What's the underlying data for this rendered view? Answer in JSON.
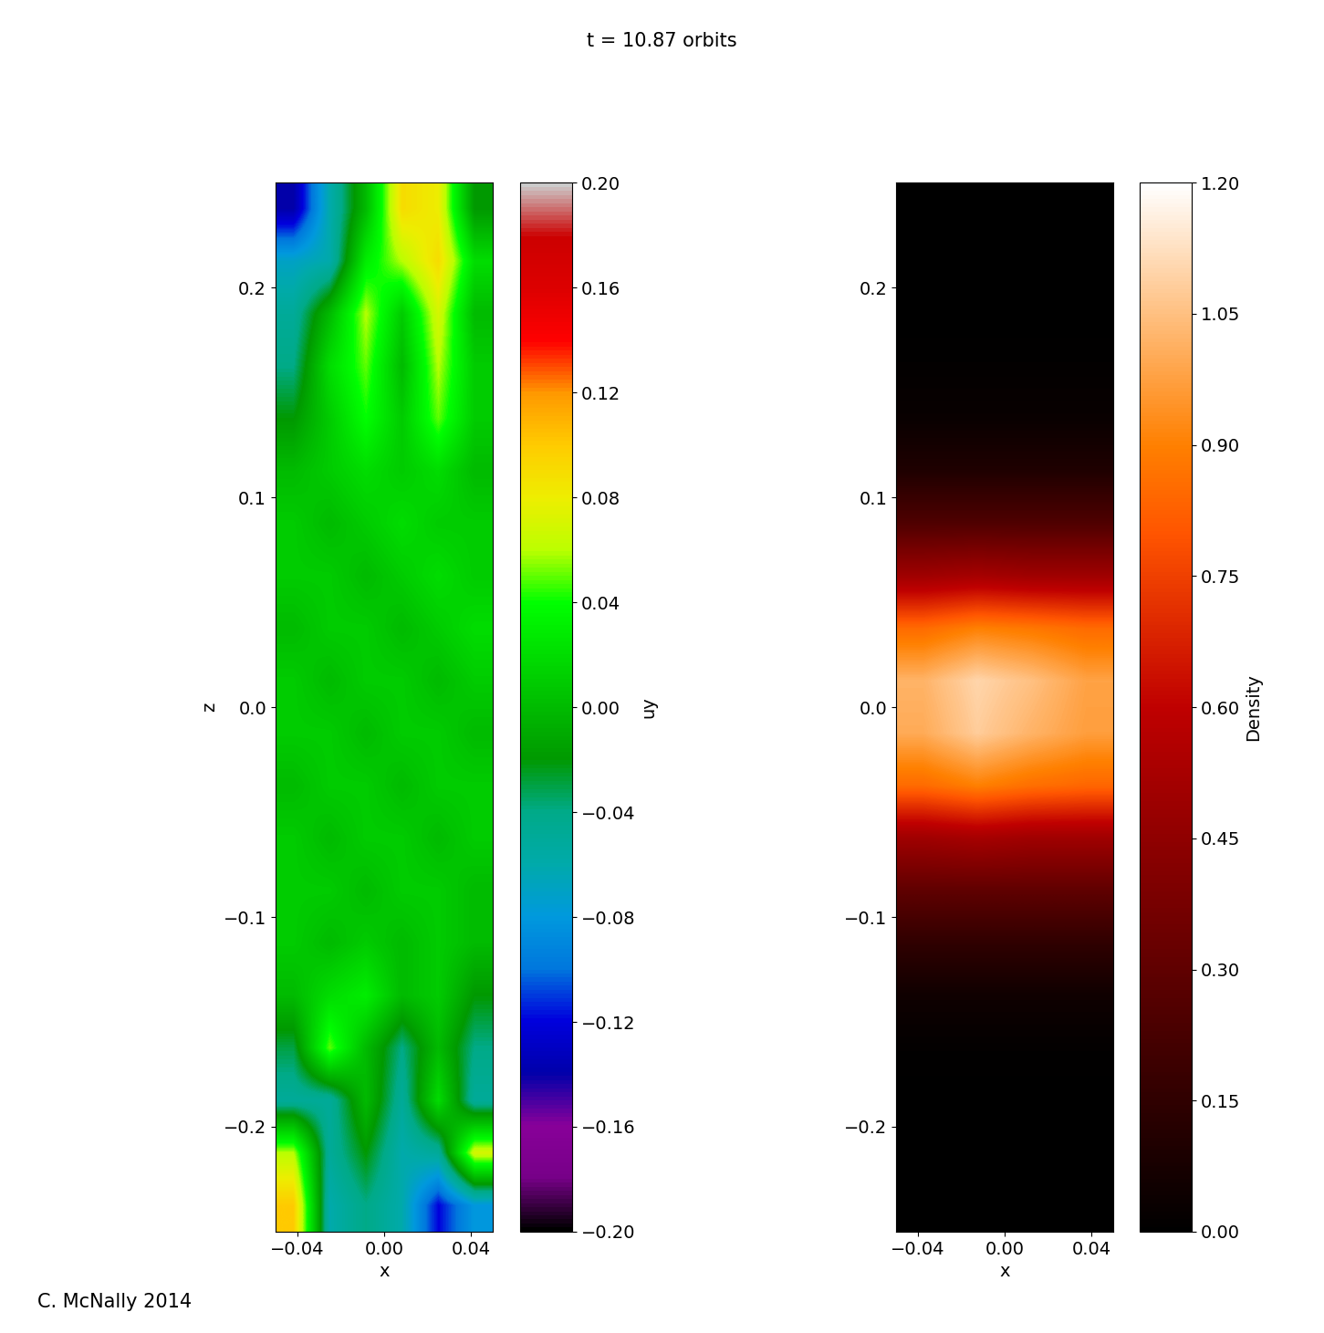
{
  "title": "t = 10.87 orbits",
  "credit": "C. McNally 2014",
  "chart_data": [
    {
      "type": "heatmap",
      "x_label": "x",
      "y_label": "z",
      "xlim": [
        -0.05,
        0.05
      ],
      "ylim": [
        -0.25,
        0.25
      ],
      "xticks": [
        {
          "value": -0.04,
          "label": "−0.04"
        },
        {
          "value": 0.0,
          "label": "0.00"
        },
        0.04
      ],
      "yticks": [
        {
          "value": -0.2,
          "label": "−0.2"
        },
        {
          "value": -0.1,
          "label": "−0.1"
        },
        0.0,
        0.1,
        0.2
      ],
      "color": "nipy_spectral",
      "cells": [
        [
          -0.14,
          -0.06,
          0.0,
          0.09,
          0.08,
          -0.02
        ],
        [
          -0.07,
          -0.06,
          0.03,
          0.06,
          0.09,
          0.02
        ],
        [
          -0.05,
          0.0,
          0.06,
          0.01,
          0.07,
          0.0
        ],
        [
          -0.04,
          0.02,
          0.05,
          0.0,
          0.06,
          0.01
        ],
        [
          -0.02,
          0.01,
          0.04,
          0.01,
          0.05,
          0.01
        ],
        [
          0.0,
          0.01,
          0.02,
          0.01,
          0.02,
          0.0
        ],
        [
          0.01,
          0.0,
          0.01,
          0.02,
          0.01,
          0.01
        ],
        [
          0.01,
          0.01,
          0.0,
          0.01,
          0.02,
          0.01
        ],
        [
          0.0,
          0.01,
          0.01,
          0.0,
          0.01,
          0.02
        ],
        [
          0.01,
          0.0,
          0.01,
          0.01,
          0.0,
          0.01
        ],
        [
          0.01,
          0.01,
          0.0,
          0.01,
          0.01,
          0.0
        ],
        [
          0.0,
          0.01,
          0.01,
          0.0,
          0.01,
          0.01
        ],
        [
          0.01,
          0.0,
          0.01,
          0.01,
          0.0,
          0.01
        ],
        [
          0.01,
          0.01,
          0.0,
          0.01,
          0.01,
          0.0
        ],
        [
          0.01,
          0.0,
          0.01,
          0.0,
          0.01,
          0.0
        ],
        [
          0.0,
          0.02,
          0.03,
          0.0,
          0.01,
          -0.02
        ],
        [
          -0.03,
          0.05,
          0.0,
          -0.04,
          0.0,
          -0.04
        ],
        [
          -0.05,
          -0.05,
          0.0,
          -0.05,
          0.02,
          -0.05
        ],
        [
          0.06,
          -0.05,
          -0.02,
          -0.06,
          -0.05,
          0.07
        ],
        [
          0.1,
          -0.06,
          -0.04,
          -0.06,
          -0.12,
          -0.08
        ]
      ],
      "colorbar": {
        "label": "uy",
        "range": [
          -0.2,
          0.2
        ],
        "ticks": [
          {
            "value": -0.2,
            "label": "−0.20"
          },
          {
            "value": -0.16,
            "label": "−0.16"
          },
          {
            "value": -0.12,
            "label": "−0.12"
          },
          {
            "value": -0.08,
            "label": "−0.08"
          },
          {
            "value": -0.04,
            "label": "−0.04"
          },
          {
            "value": 0.0,
            "label": "0.00"
          },
          0.04,
          0.08,
          0.12,
          0.16,
          {
            "value": 0.2,
            "label": "0.20"
          }
        ]
      }
    },
    {
      "type": "heatmap",
      "x_label": "x",
      "xlim": [
        -0.05,
        0.05
      ],
      "ylim": [
        -0.25,
        0.25
      ],
      "xticks": [
        {
          "value": -0.04,
          "label": "−0.04"
        },
        {
          "value": 0.0,
          "label": "0.00"
        },
        0.04
      ],
      "yticks": [
        {
          "value": -0.2,
          "label": "−0.2"
        },
        {
          "value": -0.1,
          "label": "−0.1"
        },
        0.0,
        0.1,
        0.2
      ],
      "color": "gist_heat",
      "cells": [
        [
          0.0,
          0.0,
          0.0,
          0.0
        ],
        [
          0.0,
          0.0,
          0.0,
          0.0
        ],
        [
          0.0,
          0.0,
          0.0,
          0.0
        ],
        [
          0.01,
          0.01,
          0.01,
          0.01
        ],
        [
          0.03,
          0.03,
          0.03,
          0.03
        ],
        [
          0.1,
          0.1,
          0.1,
          0.1
        ],
        [
          0.25,
          0.25,
          0.25,
          0.25
        ],
        [
          0.5,
          0.52,
          0.5,
          0.5
        ],
        [
          0.85,
          0.9,
          0.88,
          0.85
        ],
        [
          1.02,
          1.1,
          1.05,
          0.98
        ],
        [
          1.0,
          1.08,
          1.02,
          0.97
        ],
        [
          0.85,
          0.9,
          0.86,
          0.84
        ],
        [
          0.5,
          0.52,
          0.5,
          0.5
        ],
        [
          0.3,
          0.3,
          0.3,
          0.3
        ],
        [
          0.15,
          0.15,
          0.15,
          0.15
        ],
        [
          0.05,
          0.05,
          0.05,
          0.05
        ],
        [
          0.01,
          0.01,
          0.01,
          0.01
        ],
        [
          0.0,
          0.0,
          0.0,
          0.0
        ],
        [
          0.0,
          0.0,
          0.0,
          0.0
        ],
        [
          0.0,
          0.0,
          0.0,
          0.0
        ]
      ],
      "colorbar": {
        "label": "Density",
        "range": [
          0.0,
          1.2
        ],
        "ticks": [
          {
            "value": 0.0,
            "label": "0.00"
          },
          0.15,
          {
            "value": 0.3,
            "label": "0.30"
          },
          0.45,
          {
            "value": 0.6,
            "label": "0.60"
          },
          0.75,
          {
            "value": 0.9,
            "label": "0.90"
          },
          1.05,
          {
            "value": 1.2,
            "label": "1.20"
          }
        ]
      }
    }
  ]
}
